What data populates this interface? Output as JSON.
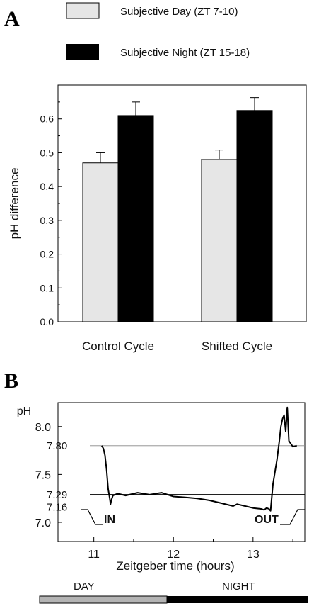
{
  "chart_data": [
    {
      "panel": "A",
      "type": "bar",
      "categories": [
        "Control Cycle",
        "Shifted Cycle"
      ],
      "series": [
        {
          "name": "Subjective Day (ZT 7-10)",
          "values": [
            0.47,
            0.48
          ],
          "errors": [
            0.03,
            0.028
          ],
          "color": "#e6e6e6"
        },
        {
          "name": "Subjective Night (ZT 15-18)",
          "values": [
            0.61,
            0.625
          ],
          "errors": [
            0.04,
            0.038
          ],
          "color": "#000000"
        }
      ],
      "ylabel": "pH difference",
      "xlabel": "",
      "ylim": [
        0.0,
        0.7
      ],
      "yticks": [
        "0.0",
        "0.1",
        "0.2",
        "0.3",
        "0.4",
        "0.5",
        "0.6"
      ],
      "legend_position": "top"
    },
    {
      "panel": "B",
      "type": "line",
      "xlabel": "Zeitgeber time (hours)",
      "ylabel": "pH",
      "xlim": [
        10.55,
        13.65
      ],
      "ylim": [
        6.8,
        8.25
      ],
      "xticks": [
        "11",
        "12",
        "13"
      ],
      "yticks": [
        "7.0",
        "7.5",
        "8.0"
      ],
      "reference_lines": [
        {
          "label": "7.80",
          "value": 7.8
        },
        {
          "label": "7.29",
          "value": 7.29
        },
        {
          "label": "7.16",
          "value": 7.16
        }
      ],
      "annotations": {
        "in": "IN",
        "out": "OUT"
      },
      "series": [
        {
          "x": [
            11.1,
            11.12,
            11.14,
            11.16,
            11.18,
            11.2,
            11.21,
            11.22,
            11.24,
            11.3,
            11.4,
            11.55,
            11.7,
            11.85,
            12.0,
            12.15,
            12.3,
            12.45,
            12.6,
            12.7,
            12.75,
            12.8,
            12.9,
            13.0,
            13.1,
            13.14,
            13.17,
            13.2,
            13.22,
            13.25,
            13.3,
            13.33,
            13.35,
            13.37,
            13.39,
            13.41,
            13.43,
            13.45,
            13.5,
            13.55
          ],
          "y": [
            7.8,
            7.77,
            7.7,
            7.55,
            7.35,
            7.25,
            7.19,
            7.23,
            7.28,
            7.3,
            7.28,
            7.31,
            7.29,
            7.31,
            7.27,
            7.26,
            7.25,
            7.23,
            7.2,
            7.18,
            7.17,
            7.19,
            7.17,
            7.15,
            7.14,
            7.13,
            7.15,
            7.14,
            7.12,
            7.4,
            7.65,
            7.85,
            8.0,
            8.08,
            8.12,
            7.95,
            8.2,
            7.85,
            7.79,
            7.8
          ]
        }
      ]
    }
  ],
  "figure": {
    "panel_a_label": "A",
    "panel_b_label": "B",
    "timebar": {
      "day_label": "DAY",
      "night_label": "NIGHT",
      "day_color": "#b4b4b4",
      "night_color": "#000000"
    }
  }
}
